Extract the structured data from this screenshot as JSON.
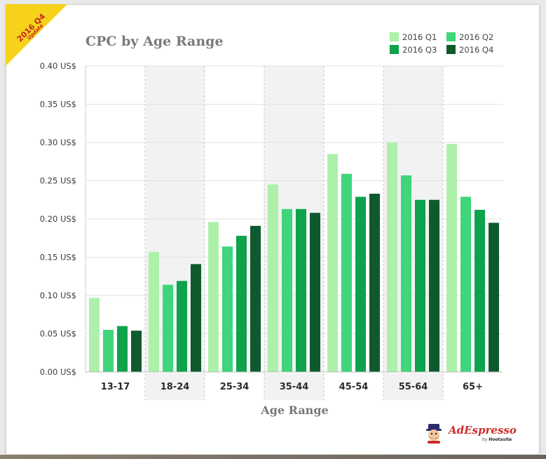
{
  "badge": {
    "line1": "2016 Q4",
    "line2": "Update"
  },
  "brand": {
    "name": "AdEspresso",
    "by": "by",
    "sub": "Hootsuite"
  },
  "chart_data": {
    "type": "bar",
    "title": "CPC by Age Range",
    "xlabel": "Age Range",
    "ylabel": "",
    "categories": [
      "13-17",
      "18-24",
      "25-34",
      "35-44",
      "45-54",
      "55-64",
      "65+"
    ],
    "series": [
      {
        "name": "2016 Q1",
        "color": "#adf0aa",
        "values": [
          0.097,
          0.157,
          0.196,
          0.245,
          0.285,
          0.3,
          0.298
        ]
      },
      {
        "name": "2016 Q2",
        "color": "#3fd57a",
        "values": [
          0.055,
          0.114,
          0.164,
          0.213,
          0.259,
          0.257,
          0.229
        ]
      },
      {
        "name": "2016 Q3",
        "color": "#0fa24c",
        "values": [
          0.06,
          0.119,
          0.178,
          0.213,
          0.229,
          0.225,
          0.212
        ]
      },
      {
        "name": "2016 Q4",
        "color": "#0e5a2c",
        "values": [
          0.054,
          0.141,
          0.191,
          0.208,
          0.233,
          0.225,
          0.195
        ]
      }
    ],
    "ylim": [
      0,
      0.4
    ],
    "yticks": [
      0,
      0.05,
      0.1,
      0.15,
      0.2,
      0.25,
      0.3,
      0.35,
      0.4
    ],
    "ytick_labels": [
      "0.00 US$",
      "0.05 US$",
      "0.10 US$",
      "0.15 US$",
      "0.20 US$",
      "0.25 US$",
      "0.30 US$",
      "0.35 US$",
      "0.40 US$"
    ],
    "grid": true,
    "alternating_bands": true,
    "legend_position": "top-right"
  }
}
